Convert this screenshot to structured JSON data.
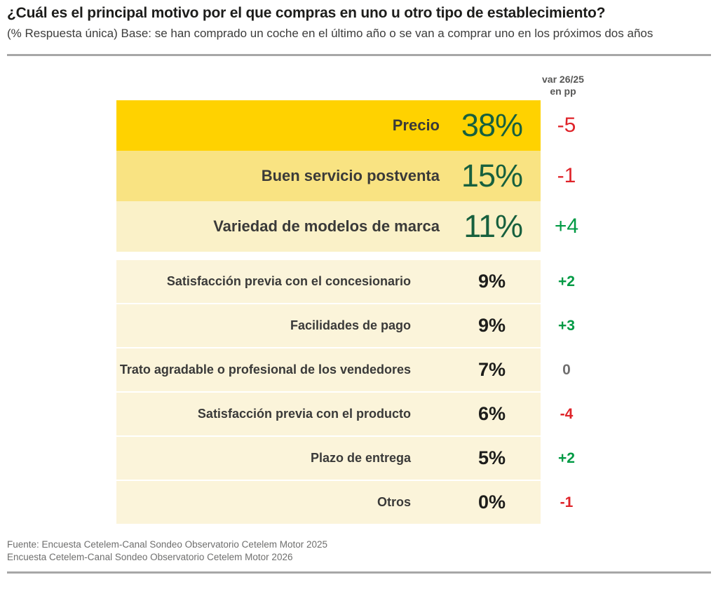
{
  "header": {
    "title": "¿Cuál es el principal motivo por el que compras en uno u otro tipo de establecimiento?",
    "subtitle": "(% Respuesta única) Base: se han comprado un coche en el último año o se van a comprar uno en los próximos dos años"
  },
  "var_header": {
    "line1": "var 26/25",
    "line2": "en pp"
  },
  "rows": [
    {
      "label": "Precio",
      "value": "38%",
      "variation": "-5",
      "variation_color": "neg",
      "tier": "tier-1"
    },
    {
      "label": "Buen servicio postventa",
      "value": "15%",
      "variation": "-1",
      "variation_color": "neg",
      "tier": "tier-2"
    },
    {
      "label": "Variedad de modelos de marca",
      "value": "11%",
      "variation": "+4",
      "variation_color": "pos",
      "tier": "tier-3"
    },
    {
      "label": "Satisfacción previa con el concesionario",
      "value": "9%",
      "variation": "+2",
      "variation_color": "pos",
      "tier": "minor"
    },
    {
      "label": "Facilidades de pago",
      "value": "9%",
      "variation": "+3",
      "variation_color": "pos",
      "tier": "minor"
    },
    {
      "label": "Trato agradable o profesional de los vendedores",
      "value": "7%",
      "variation": "0",
      "variation_color": "zero",
      "tier": "minor"
    },
    {
      "label": "Satisfacción previa con el producto",
      "value": "6%",
      "variation": "-4",
      "variation_color": "neg",
      "tier": "minor"
    },
    {
      "label": "Plazo de entrega",
      "value": "5%",
      "variation": "+2",
      "variation_color": "pos",
      "tier": "minor"
    },
    {
      "label": "Otros",
      "value": "0%",
      "variation": "-1",
      "variation_color": "neg",
      "tier": "minor"
    }
  ],
  "chart_data": {
    "type": "bar",
    "orientation": "horizontal",
    "title": "¿Cuál es el principal motivo por el que compras en uno u otro tipo de establecimiento?",
    "subtitle": "(% Respuesta única) Base: se han comprado un coche en el último año o se van a comprar uno en los próximos dos años",
    "categories": [
      "Precio",
      "Buen servicio postventa",
      "Variedad de modelos de marca",
      "Satisfacción previa con el concesionario",
      "Facilidades de pago",
      "Trato agradable o profesional de los vendedores",
      "Satisfacción previa con el producto",
      "Plazo de entrega",
      "Otros"
    ],
    "series": [
      {
        "name": "% Respuesta única",
        "values": [
          38,
          15,
          11,
          9,
          9,
          7,
          6,
          5,
          0
        ]
      },
      {
        "name": "var 26/25 en pp",
        "values": [
          -5,
          -1,
          4,
          2,
          3,
          0,
          -4,
          2,
          -1
        ]
      }
    ],
    "unit": "%",
    "value_labels_shown": true,
    "legend_position": "none",
    "grid": false
  },
  "footer": {
    "line1": "Fuente: Encuesta Cetelem-Canal Sondeo Observatorio Cetelem Motor 2025",
    "line2": "Encuesta Cetelem-Canal Sondeo Observatorio Cetelem Motor 2026"
  },
  "colors": {
    "gold": "#FFD200",
    "yellow_mid": "#F9E382",
    "yellow_pale": "#FAF1C8",
    "cream": "#FBF4DA",
    "dark_green": "#17603E",
    "green": "#009A44",
    "red": "#DF2329",
    "gray": "#706F6F",
    "divider": "#A7A7A7"
  }
}
